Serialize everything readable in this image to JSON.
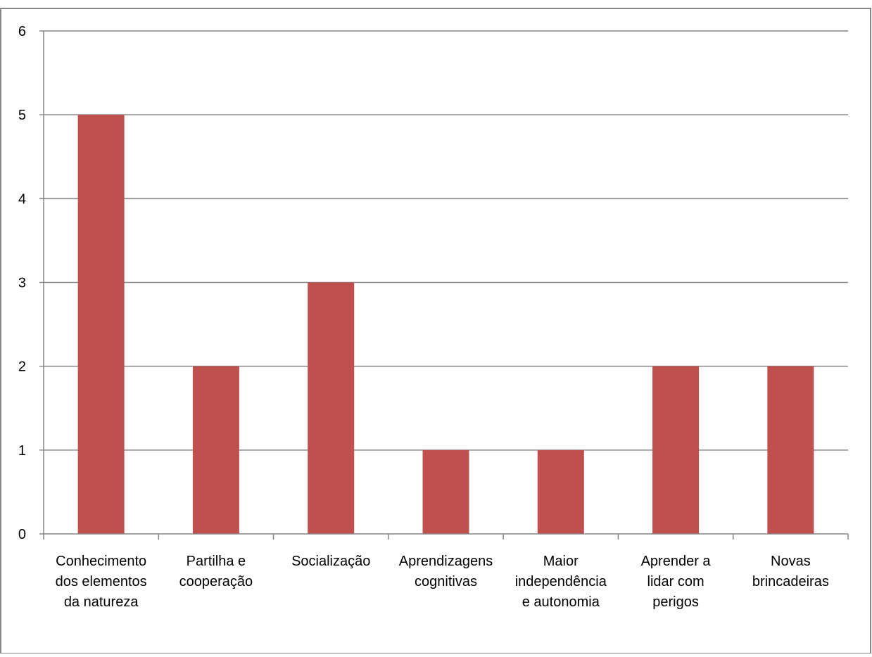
{
  "chart_data": {
    "type": "bar",
    "title": "",
    "xlabel": "",
    "ylabel": "",
    "ylim": [
      0,
      6
    ],
    "y_ticks": [
      0,
      1,
      2,
      3,
      4,
      5,
      6
    ],
    "grid": true,
    "legend": "none",
    "categories": [
      [
        "Conhecimento",
        "dos elementos",
        "da natureza"
      ],
      [
        "Partilha e",
        "cooperação"
      ],
      [
        "Socialização"
      ],
      [
        "Aprendizagens",
        "cognitivas"
      ],
      [
        "Maior",
        "independência",
        "e autonomia"
      ],
      [
        "Aprender a",
        "lidar com",
        "perigos"
      ],
      [
        "Novas",
        "brincadeiras"
      ]
    ],
    "values": [
      5,
      2,
      3,
      1,
      1,
      2,
      2
    ],
    "colors": {
      "bar": "#C0504D",
      "grid": "#868686",
      "axis": "#868686",
      "frame": "#868686"
    }
  }
}
